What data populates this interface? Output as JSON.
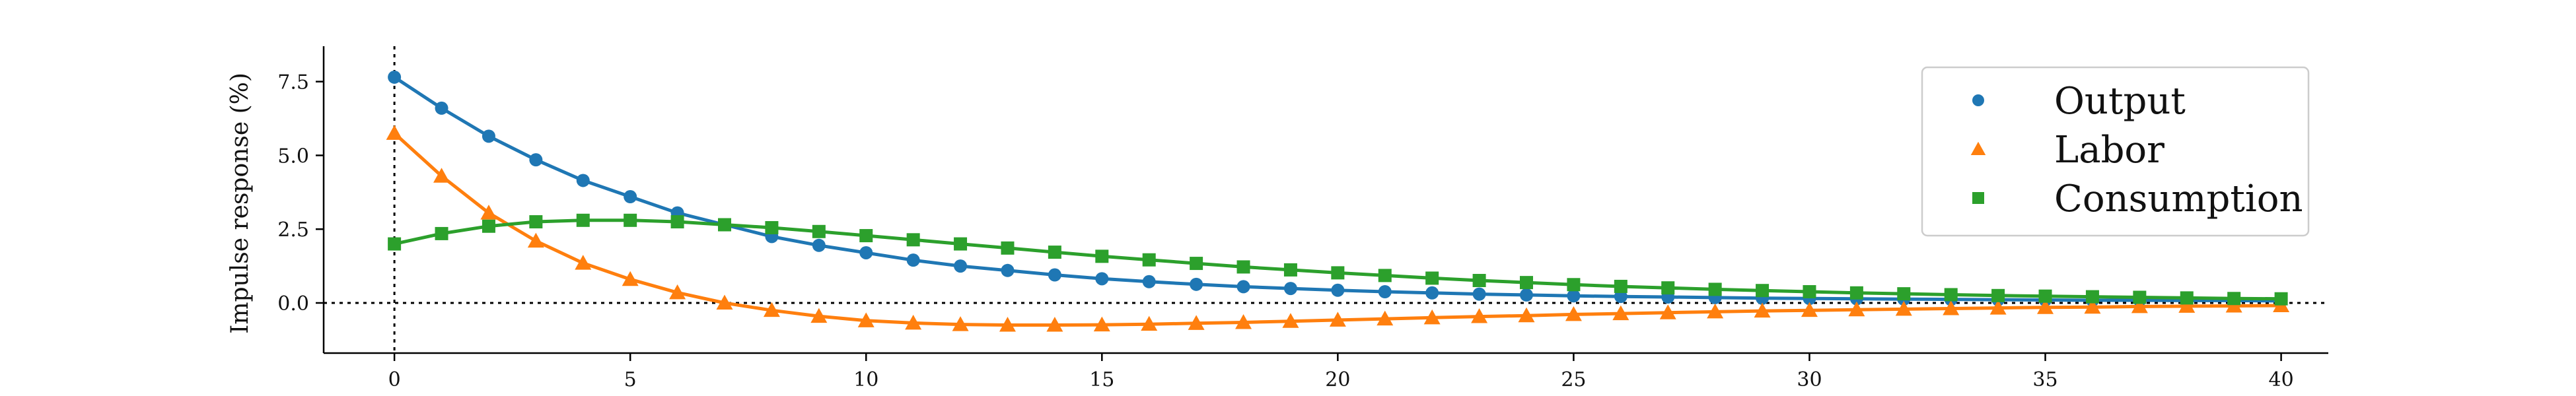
{
  "chart_data": {
    "type": "line",
    "title": "",
    "xlabel": "",
    "ylabel": "Impulse response (%)",
    "xlim": [
      -1.5,
      41
    ],
    "ylim": [
      -1.7,
      8.7
    ],
    "xticks": [
      "0",
      "5",
      "10",
      "15",
      "20",
      "25",
      "30",
      "35",
      "40"
    ],
    "xtick_values": [
      0,
      5,
      10,
      15,
      20,
      25,
      30,
      35,
      40
    ],
    "yticks": [
      "0.0",
      "2.5",
      "5.0",
      "7.5"
    ],
    "ytick_values": [
      0.0,
      2.5,
      5.0,
      7.5
    ],
    "grid": false,
    "legend_position": "top-right",
    "reference_lines": {
      "horizontal_y": 0,
      "vertical_x": 0,
      "style": "dotted"
    },
    "x": [
      0,
      1,
      2,
      3,
      4,
      5,
      6,
      7,
      8,
      9,
      10,
      11,
      12,
      13,
      14,
      15,
      16,
      17,
      18,
      19,
      20,
      21,
      22,
      23,
      24,
      25,
      26,
      27,
      28,
      29,
      30,
      31,
      32,
      33,
      34,
      35,
      36,
      37,
      38,
      39,
      40
    ],
    "series": [
      {
        "name": "Output",
        "color": "#1f77b4",
        "marker": "circle",
        "values": [
          7.65,
          6.6,
          5.65,
          4.85,
          4.15,
          3.6,
          3.05,
          2.65,
          2.25,
          1.95,
          1.7,
          1.45,
          1.25,
          1.1,
          0.95,
          0.82,
          0.72,
          0.63,
          0.55,
          0.49,
          0.43,
          0.38,
          0.34,
          0.3,
          0.27,
          0.24,
          0.22,
          0.2,
          0.18,
          0.16,
          0.15,
          0.14,
          0.13,
          0.12,
          0.11,
          0.1,
          0.09,
          0.09,
          0.08,
          0.08,
          0.07
        ]
      },
      {
        "name": "Labor",
        "color": "#ff7f0e",
        "marker": "triangle",
        "values": [
          5.75,
          4.3,
          3.05,
          2.1,
          1.35,
          0.8,
          0.35,
          0.0,
          -0.25,
          -0.45,
          -0.6,
          -0.68,
          -0.73,
          -0.75,
          -0.75,
          -0.74,
          -0.72,
          -0.69,
          -0.66,
          -0.62,
          -0.58,
          -0.54,
          -0.5,
          -0.46,
          -0.43,
          -0.39,
          -0.36,
          -0.33,
          -0.3,
          -0.27,
          -0.25,
          -0.23,
          -0.21,
          -0.19,
          -0.17,
          -0.15,
          -0.14,
          -0.12,
          -0.11,
          -0.1,
          -0.09
        ]
      },
      {
        "name": "Consumption",
        "color": "#2ca02c",
        "marker": "square",
        "values": [
          2.0,
          2.35,
          2.6,
          2.75,
          2.8,
          2.8,
          2.75,
          2.65,
          2.55,
          2.42,
          2.28,
          2.14,
          2.0,
          1.86,
          1.72,
          1.58,
          1.46,
          1.34,
          1.22,
          1.12,
          1.02,
          0.93,
          0.84,
          0.76,
          0.69,
          0.62,
          0.56,
          0.51,
          0.46,
          0.42,
          0.38,
          0.34,
          0.31,
          0.28,
          0.25,
          0.23,
          0.21,
          0.19,
          0.17,
          0.15,
          0.14
        ]
      }
    ]
  }
}
